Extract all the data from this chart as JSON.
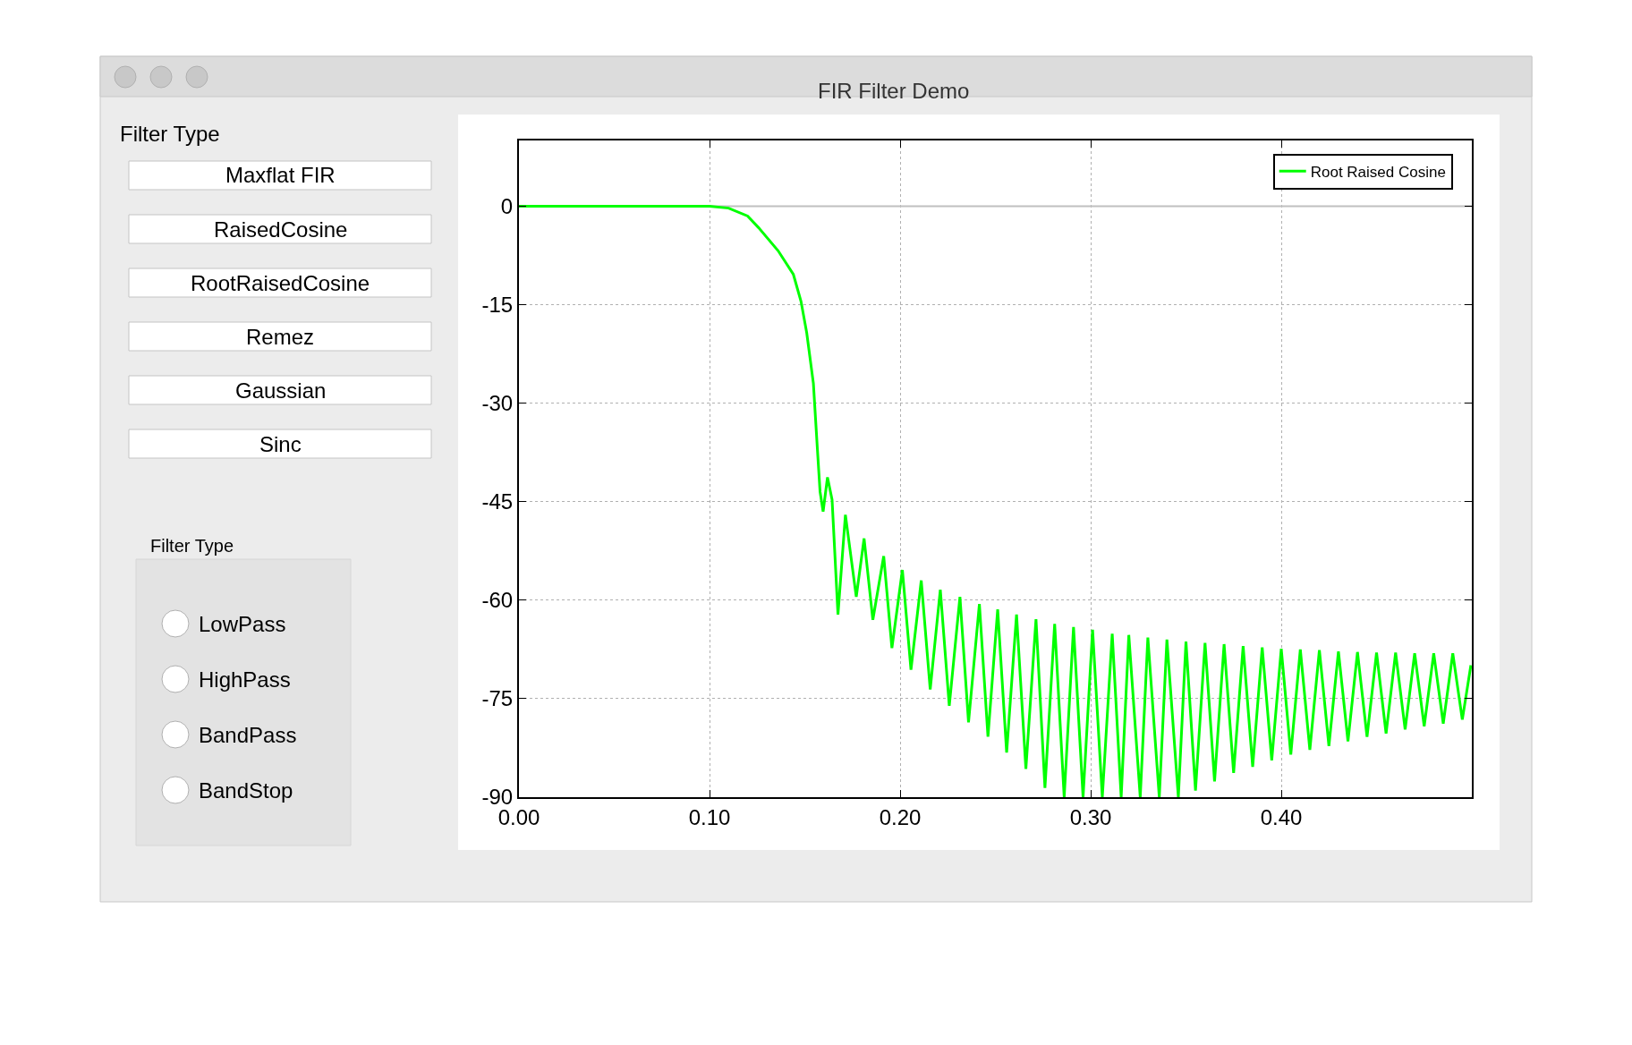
{
  "chart_data": {
    "type": "line",
    "title": "FIR Filter Demo",
    "annotations": [
      "Filter Type",
      "Maxflat FIR",
      "RaisedCosine",
      "RootRaisedCosine",
      "Remez",
      "Gaussian",
      "Sinc",
      "Filter Type",
      "LowPass",
      "HighPass",
      "BandPass",
      "BandStop"
    ],
    "series": [
      {
        "name": "Root Raised Cosine",
        "color": "#00ff00",
        "x": [
          0,
          0.05,
          0.1,
          0.11,
          0.12,
          0.1258,
          0.136,
          0.144,
          0.148,
          0.151,
          0.1545,
          0.1566,
          0.158,
          0.1596,
          0.1619,
          0.1643,
          0.1674,
          0.1713,
          0.177,
          0.1811,
          0.1857,
          0.1914,
          0.1957,
          0.2012,
          0.2057,
          0.2111,
          0.2158,
          0.2211,
          0.2258,
          0.2314,
          0.2359,
          0.2416,
          0.2461,
          0.2512,
          0.2559,
          0.2611,
          0.266,
          0.2713,
          0.276,
          0.2811,
          0.2861,
          0.291,
          0.296,
          0.301,
          0.3061,
          0.3113,
          0.316,
          0.32,
          0.326,
          0.33,
          0.336,
          0.34,
          0.346,
          0.35,
          0.355,
          0.36,
          0.365,
          0.37,
          0.375,
          0.38,
          0.385,
          0.39,
          0.395,
          0.4,
          0.405,
          0.41,
          0.415,
          0.42,
          0.425,
          0.43,
          0.435,
          0.44,
          0.445,
          0.45,
          0.455,
          0.46,
          0.465,
          0.47,
          0.475,
          0.48,
          0.485,
          0.49,
          0.495,
          0.4995
        ],
        "values": [
          0,
          0,
          0,
          -0.3,
          -1.5,
          -3.3,
          -6.8,
          -10.4,
          -14.5,
          -19.3,
          -27,
          -37,
          -43.5,
          -46.5,
          -41.3,
          -44.7,
          -62.2,
          -47,
          -59.5,
          -50.6,
          -63,
          -53.3,
          -67.3,
          -55.4,
          -70.6,
          -57,
          -73.6,
          -58.4,
          -76.1,
          -59.5,
          -78.6,
          -60.6,
          -80.8,
          -61.4,
          -83.2,
          -62.2,
          -85.7,
          -62.9,
          -88.6,
          -63.6,
          -90,
          -64.1,
          -90,
          -64.5,
          -90,
          -65.1,
          -90,
          -65.3,
          -90,
          -65.7,
          -90,
          -66,
          -90,
          -66.3,
          -89,
          -66.5,
          -87.6,
          -66.7,
          -86.3,
          -67,
          -85.4,
          -67.2,
          -84.4,
          -67.4,
          -83.5,
          -67.5,
          -82.8,
          -67.6,
          -82.2,
          -67.8,
          -81.5,
          -67.9,
          -80.8,
          -68,
          -80.3,
          -68,
          -79.7,
          -68.1,
          -79.2,
          -68.1,
          -78.8,
          -68.1,
          -78.2,
          -69.9
        ]
      }
    ],
    "xlim": [
      0,
      0.5
    ],
    "xticks": [
      {
        "value": 0,
        "label": "0.00"
      },
      {
        "value": 0.1,
        "label": "0.10"
      },
      {
        "value": 0.2,
        "label": "0.20"
      },
      {
        "value": 0.3,
        "label": "0.30"
      },
      {
        "value": 0.4,
        "label": "0.40"
      }
    ],
    "ylim": [
      -90,
      10
    ],
    "yticks": [
      -90,
      -75,
      -60,
      -45,
      -30,
      -15,
      0
    ],
    "ref_lines": [
      {
        "axis": "y",
        "value": 0,
        "color": "#c0c0c0"
      }
    ],
    "grid": true,
    "legend": "top right",
    "line_style": "solid",
    "marker": "none"
  }
}
